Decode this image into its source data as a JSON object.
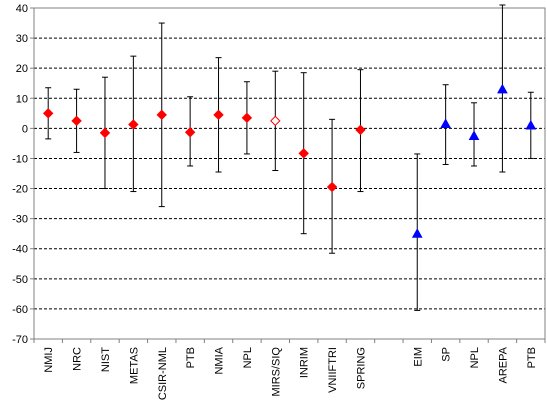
{
  "chart_data": {
    "type": "scatter",
    "title": "",
    "xlabel": "",
    "ylabel": "",
    "ylim": [
      -70,
      40
    ],
    "ytick_step": 10,
    "grid": {
      "y_major": true,
      "style": "dashed"
    },
    "legend": "none",
    "colors": {
      "diamond_series": "#ff0000",
      "triangle_series": "#0000ff",
      "error_bars": "#000000",
      "axes": "#808080",
      "grid": "#000000"
    },
    "categories": [
      "NMIJ",
      "NRC",
      "NIST",
      "METAS",
      "CSIR-NML",
      "PTB",
      "NMIA",
      "NPL",
      "MIRS/SIQ",
      "INRIM",
      "VNIIFTRI",
      "SPRING",
      "",
      "EIM",
      "SP",
      "NPL",
      "AREPA",
      "PTB"
    ],
    "points": [
      {
        "label": "NMIJ",
        "marker": "diamond",
        "y": 5,
        "err_low": -3.5,
        "err_high": 13.5
      },
      {
        "label": "NRC",
        "marker": "diamond",
        "y": 2.5,
        "err_low": -8,
        "err_high": 13
      },
      {
        "label": "NIST",
        "marker": "diamond",
        "y": -1.5,
        "err_low": -20,
        "err_high": 17
      },
      {
        "label": "METAS",
        "marker": "diamond",
        "y": 1.3,
        "err_low": -21,
        "err_high": 24
      },
      {
        "label": "CSIR-NML",
        "marker": "diamond",
        "y": 4.5,
        "err_low": -26,
        "err_high": 35
      },
      {
        "label": "PTB",
        "marker": "diamond",
        "y": -1.3,
        "err_low": -12.5,
        "err_high": 10.5
      },
      {
        "label": "NMIA",
        "marker": "diamond",
        "y": 4.5,
        "err_low": -14.5,
        "err_high": 23.5
      },
      {
        "label": "NPL",
        "marker": "diamond",
        "y": 3.5,
        "err_low": -8.5,
        "err_high": 15.5
      },
      {
        "label": "MIRS/SIQ",
        "marker": "diamond-open",
        "y": 2.5,
        "err_low": -14,
        "err_high": 19
      },
      {
        "label": "INRIM",
        "marker": "diamond",
        "y": -8.3,
        "err_low": -35,
        "err_high": 18.5
      },
      {
        "label": "VNIIFTRI",
        "marker": "diamond",
        "y": -19.5,
        "err_low": -41.5,
        "err_high": 3
      },
      {
        "label": "SPRING",
        "marker": "diamond",
        "y": -0.5,
        "err_low": -21,
        "err_high": 19.5
      },
      {
        "label": "EIM",
        "marker": "triangle",
        "y": -35,
        "err_low": -60.5,
        "err_high": -8.5
      },
      {
        "label": "SP",
        "marker": "triangle",
        "y": 1.5,
        "err_low": -12,
        "err_high": 14.5
      },
      {
        "label": "NPL",
        "marker": "triangle",
        "y": -2.5,
        "err_low": -12.5,
        "err_high": 8.5
      },
      {
        "label": "AREPA",
        "marker": "triangle",
        "y": 13,
        "err_low": -14.5,
        "err_high": 41
      },
      {
        "label": "PTB",
        "marker": "triangle",
        "y": 1,
        "err_low": -10,
        "err_high": 12
      }
    ]
  }
}
